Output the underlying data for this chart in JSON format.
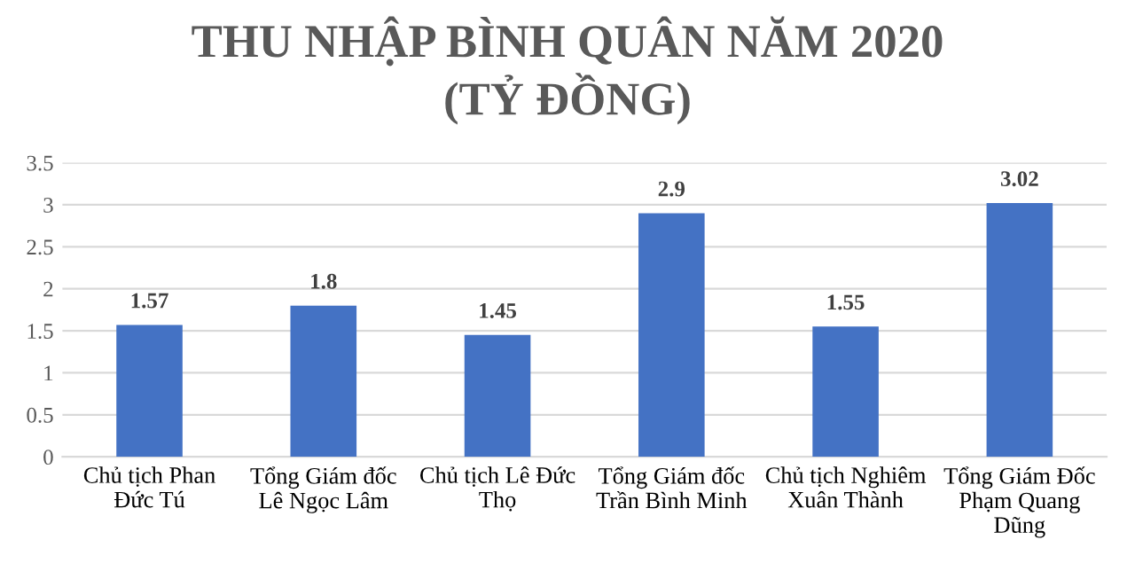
{
  "chart_data": {
    "type": "bar",
    "title": "THU NHẬP BÌNH QUÂN NĂM 2020\n(TỶ ĐỒNG)",
    "categories": [
      "Chủ tịch Phan\nĐức Tú",
      "Tổng Giám đốc\nLê Ngọc Lâm",
      "Chủ tịch Lê Đức\nThọ",
      "Tổng Giám đốc\nTrần Bình Minh",
      "Chủ tịch Nghiêm\nXuân Thành",
      "Tổng Giám Đốc\nPhạm Quang\nDũng"
    ],
    "values": [
      1.57,
      1.8,
      1.45,
      2.9,
      1.55,
      3.02
    ],
    "color": "#4472c4",
    "ylim": [
      0,
      3.5
    ],
    "yticks": [
      0,
      0.5,
      1,
      1.5,
      2,
      2.5,
      3,
      3.5
    ],
    "grid": "y",
    "data_labels": true
  }
}
